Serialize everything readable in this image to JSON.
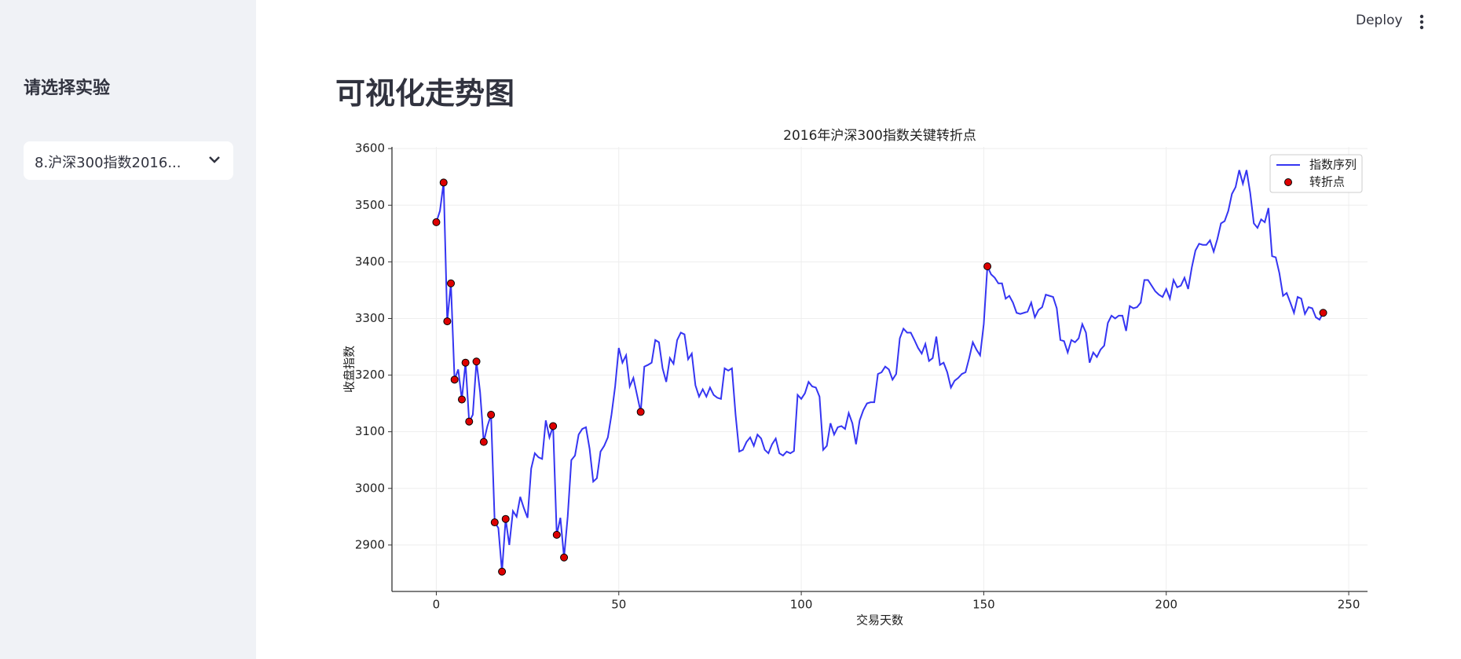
{
  "header": {
    "deploy": "Deploy"
  },
  "sidebar": {
    "title": "请选择实验",
    "select": "8.沪深300指数2016..."
  },
  "page_title": "可视化走势图",
  "chart_data": {
    "type": "line",
    "title": "2016年沪深300指数关键转折点",
    "x_label": "交易天数",
    "y_label": "收盘指数",
    "x": [
      0,
      1,
      2,
      3,
      4,
      5,
      6,
      7,
      8,
      9,
      10,
      11,
      12,
      13,
      14,
      15,
      16,
      17,
      18,
      19,
      20,
      21,
      22,
      23,
      24,
      25,
      26,
      27,
      28,
      29,
      30,
      31,
      32,
      33,
      34,
      35,
      36,
      37,
      38,
      39,
      40,
      41,
      42,
      43,
      44,
      45,
      46,
      47,
      48,
      49,
      50,
      51,
      52,
      53,
      54,
      55,
      56,
      57,
      58,
      59,
      60,
      61,
      62,
      63,
      64,
      65,
      66,
      67,
      68,
      69,
      70,
      71,
      72,
      73,
      74,
      75,
      76,
      77,
      78,
      79,
      80,
      81,
      82,
      83,
      84,
      85,
      86,
      87,
      88,
      89,
      90,
      91,
      92,
      93,
      94,
      95,
      96,
      97,
      98,
      99,
      100,
      101,
      102,
      103,
      104,
      105,
      106,
      107,
      108,
      109,
      110,
      111,
      112,
      113,
      114,
      115,
      116,
      117,
      118,
      119,
      120,
      121,
      122,
      123,
      124,
      125,
      126,
      127,
      128,
      129,
      130,
      131,
      132,
      133,
      134,
      135,
      136,
      137,
      138,
      139,
      140,
      141,
      142,
      143,
      144,
      145,
      146,
      147,
      148,
      149,
      150,
      151,
      152,
      153,
      154,
      155,
      156,
      157,
      158,
      159,
      160,
      161,
      162,
      163,
      164,
      165,
      166,
      167,
      168,
      169,
      170,
      171,
      172,
      173,
      174,
      175,
      176,
      177,
      178,
      179,
      180,
      181,
      182,
      183,
      184,
      185,
      186,
      187,
      188,
      189,
      190,
      191,
      192,
      193,
      194,
      195,
      196,
      197,
      198,
      199,
      200,
      201,
      202,
      203,
      204,
      205,
      206,
      207,
      208,
      209,
      210,
      211,
      212,
      213,
      214,
      215,
      216,
      217,
      218,
      219,
      220,
      221,
      222,
      223,
      224,
      225,
      226,
      227,
      228,
      229,
      230,
      231,
      232,
      233,
      234,
      235,
      236,
      237,
      238,
      239,
      240,
      241,
      242,
      243
    ],
    "series": [
      {
        "name": "指数序列",
        "color": "#3535f2",
        "values": [
          3470,
          3490,
          3540,
          3295,
          3362,
          3192,
          3210,
          3157,
          3222,
          3118,
          3130,
          3224,
          3170,
          3082,
          3110,
          3130,
          2940,
          2930,
          2853,
          2946,
          2900,
          2960,
          2950,
          2985,
          2965,
          2948,
          3035,
          3062,
          3055,
          3052,
          3120,
          3090,
          3110,
          2918,
          2948,
          2878,
          2950,
          3050,
          3058,
          3095,
          3105,
          3108,
          3070,
          3012,
          3018,
          3065,
          3075,
          3090,
          3130,
          3180,
          3248,
          3222,
          3235,
          3180,
          3195,
          3165,
          3135,
          3215,
          3218,
          3222,
          3262,
          3258,
          3212,
          3188,
          3230,
          3220,
          3262,
          3275,
          3272,
          3228,
          3238,
          3182,
          3162,
          3175,
          3162,
          3178,
          3165,
          3160,
          3158,
          3212,
          3208,
          3212,
          3130,
          3065,
          3068,
          3082,
          3090,
          3075,
          3095,
          3088,
          3068,
          3062,
          3078,
          3088,
          3062,
          3058,
          3065,
          3062,
          3066,
          3165,
          3158,
          3168,
          3188,
          3180,
          3178,
          3162,
          3068,
          3075,
          3115,
          3095,
          3108,
          3110,
          3105,
          3133,
          3115,
          3078,
          3120,
          3138,
          3150,
          3152,
          3152,
          3202,
          3205,
          3215,
          3210,
          3192,
          3202,
          3265,
          3282,
          3275,
          3275,
          3262,
          3248,
          3238,
          3255,
          3225,
          3230,
          3268,
          3218,
          3222,
          3205,
          3178,
          3190,
          3195,
          3202,
          3205,
          3230,
          3258,
          3245,
          3235,
          3290,
          3392,
          3378,
          3372,
          3362,
          3362,
          3335,
          3340,
          3328,
          3310,
          3308,
          3310,
          3312,
          3328,
          3302,
          3315,
          3320,
          3342,
          3340,
          3338,
          3318,
          3262,
          3260,
          3240,
          3262,
          3258,
          3265,
          3290,
          3275,
          3222,
          3240,
          3232,
          3245,
          3252,
          3292,
          3305,
          3300,
          3305,
          3305,
          3278,
          3322,
          3318,
          3320,
          3328,
          3368,
          3368,
          3358,
          3348,
          3342,
          3338,
          3352,
          3335,
          3368,
          3355,
          3358,
          3372,
          3352,
          3390,
          3420,
          3432,
          3430,
          3430,
          3438,
          3418,
          3440,
          3468,
          3472,
          3490,
          3520,
          3532,
          3562,
          3538,
          3562,
          3522,
          3468,
          3460,
          3475,
          3470,
          3495,
          3410,
          3408,
          3380,
          3340,
          3345,
          3328,
          3310,
          3338,
          3335,
          3308,
          3320,
          3318,
          3302,
          3298,
          3310
        ]
      },
      {
        "name": "转折点",
        "type": "scatter",
        "color": "#dd0000",
        "x": [
          0,
          2,
          3,
          4,
          5,
          7,
          8,
          9,
          11,
          13,
          15,
          16,
          18,
          19,
          32,
          33,
          35,
          56,
          151,
          243
        ],
        "values": [
          3470,
          3540,
          3295,
          3362,
          3192,
          3157,
          3222,
          3118,
          3224,
          3082,
          3130,
          2940,
          2853,
          2946,
          3110,
          2918,
          2878,
          3135,
          3392,
          3310
        ]
      }
    ],
    "xlim": [
      -12.15,
      255.15
    ],
    "ylim": [
      2818,
      3603
    ],
    "xticks": [
      0,
      50,
      100,
      150,
      200,
      250
    ],
    "yticks": [
      2900,
      3000,
      3100,
      3200,
      3300,
      3400,
      3500,
      3600
    ],
    "grid": true,
    "legend": "upper right"
  }
}
